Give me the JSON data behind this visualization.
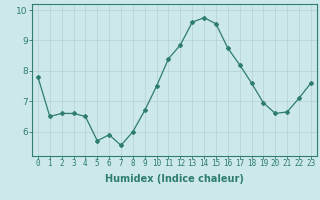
{
  "xlabel": "Humidex (Indice chaleur)",
  "ylabel": "",
  "x": [
    0,
    1,
    2,
    3,
    4,
    5,
    6,
    7,
    8,
    9,
    10,
    11,
    12,
    13,
    14,
    15,
    16,
    17,
    18,
    19,
    20,
    21,
    22,
    23
  ],
  "y": [
    7.8,
    6.5,
    6.6,
    6.6,
    6.5,
    5.7,
    5.9,
    5.55,
    6.0,
    6.7,
    7.5,
    8.4,
    8.85,
    9.6,
    9.75,
    9.55,
    8.75,
    8.2,
    7.6,
    6.95,
    6.6,
    6.65,
    7.1,
    7.6
  ],
  "line_color": "#2e7d6e",
  "marker": "D",
  "marker_size": 2,
  "bg_color": "#cce8e8",
  "grid_color": "#b8d4d4",
  "ylim": [
    5.2,
    10.2
  ],
  "yticks": [
    6,
    7,
    8,
    9,
    10
  ],
  "tick_color": "#2e7d6e",
  "label_color": "#2e7d6e",
  "spine_color": "#2e7d6e",
  "tick_fontsize": 5.5,
  "xlabel_fontsize": 7.0
}
